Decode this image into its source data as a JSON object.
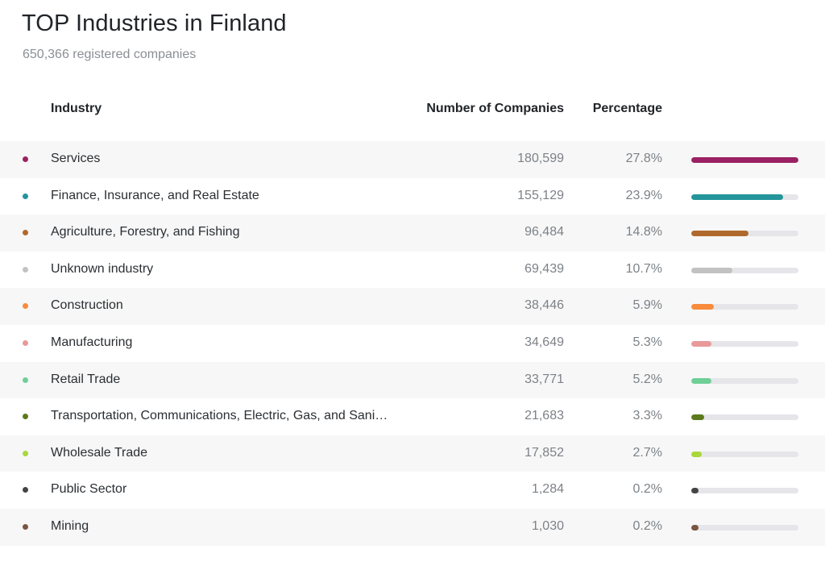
{
  "header": {
    "title": "TOP Industries in Finland",
    "subtitle": "650,366 registered companies"
  },
  "columns": {
    "industry": "Industry",
    "count": "Number of Companies",
    "percentage": "Percentage"
  },
  "chart_data": {
    "type": "table",
    "title": "TOP Industries in Finland",
    "subtitle": "650,366 registered companies",
    "max_percentage": 27.8,
    "rows": [
      {
        "industry": "Services",
        "count": "180,599",
        "percentage": 27.8,
        "percentage_label": "27.8%",
        "color": "#9b2163"
      },
      {
        "industry": "Finance, Insurance, and Real Estate",
        "count": "155,129",
        "percentage": 23.9,
        "percentage_label": "23.9%",
        "color": "#24959a"
      },
      {
        "industry": "Agriculture, Forestry, and Fishing",
        "count": "96,484",
        "percentage": 14.8,
        "percentage_label": "14.8%",
        "color": "#b0692c"
      },
      {
        "industry": "Unknown industry",
        "count": "69,439",
        "percentage": 10.7,
        "percentage_label": "10.7%",
        "color": "#c2c2c2"
      },
      {
        "industry": "Construction",
        "count": "38,446",
        "percentage": 5.9,
        "percentage_label": "5.9%",
        "color": "#f98b3c"
      },
      {
        "industry": "Manufacturing",
        "count": "34,649",
        "percentage": 5.3,
        "percentage_label": "5.3%",
        "color": "#e8999a"
      },
      {
        "industry": "Retail Trade",
        "count": "33,771",
        "percentage": 5.2,
        "percentage_label": "5.2%",
        "color": "#6fcf97"
      },
      {
        "industry": "Transportation, Communications, Electric, Gas, and Sanitary Services",
        "count": "21,683",
        "percentage": 3.3,
        "percentage_label": "3.3%",
        "color": "#5c7a1b"
      },
      {
        "industry": "Wholesale Trade",
        "count": "17,852",
        "percentage": 2.7,
        "percentage_label": "2.7%",
        "color": "#a8d83b"
      },
      {
        "industry": "Public Sector",
        "count": "1,284",
        "percentage": 0.2,
        "percentage_label": "0.2%",
        "color": "#444444"
      },
      {
        "industry": "Mining",
        "count": "1,030",
        "percentage": 0.2,
        "percentage_label": "0.2%",
        "color": "#7a5540"
      }
    ]
  }
}
